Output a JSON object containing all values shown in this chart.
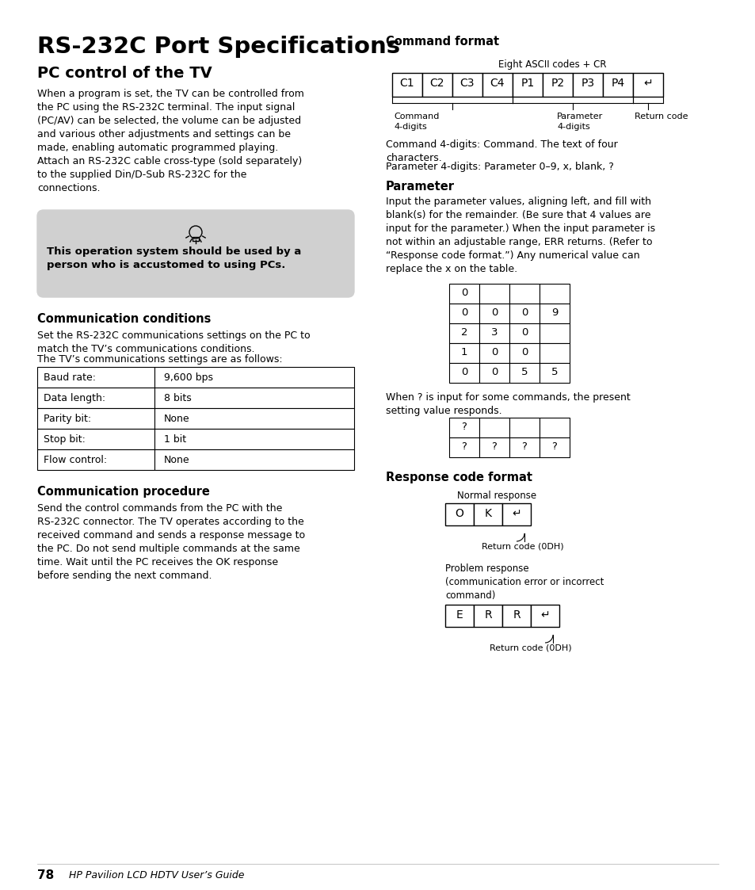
{
  "title": "RS-232C Port Specifications",
  "subtitle": "PC control of the TV",
  "bg_color": "#ffffff",
  "page_number": "78",
  "footer_text": "HP Pavilion LCD HDTV User’s Guide",
  "para1": "When a program is set, the TV can be controlled from\nthe PC using the RS-232C terminal. The input signal\n(PC/AV) can be selected, the volume can be adjusted\nand various other adjustments and settings can be\nmade, enabling automatic programmed playing.\nAttach an RS-232C cable cross-type (sold separately)\nto the supplied Din/D-Sub RS-232C for the\nconnections.",
  "tip_text": "This operation system should be used by a\nperson who is accustomed to using PCs.",
  "tip_bg": "#d0d0d0",
  "comm_cond_heading": "Communication conditions",
  "comm_cond_para": "Set the RS-232C communications settings on the PC to\nmatch the TV’s communications conditions.",
  "comm_cond_para2": "The TV’s communications settings are as follows:",
  "table_rows": [
    [
      "Baud rate:",
      "9,600 bps"
    ],
    [
      "Data length:",
      "8 bits"
    ],
    [
      "Parity bit:",
      "None"
    ],
    [
      "Stop bit:",
      "1 bit"
    ],
    [
      "Flow control:",
      "None"
    ]
  ],
  "comm_proc_heading": "Communication procedure",
  "comm_proc_para": "Send the control commands from the PC with the\nRS-232C connector. The TV operates according to the\nreceived command and sends a response message to\nthe PC. Do not send multiple commands at the same\ntime. Wait until the PC receives the OK response\nbefore sending the next command.",
  "cmd_format_heading": "Command format",
  "cmd_label_above": "Eight ASCII codes + CR",
  "cmd_boxes": [
    "C1",
    "C2",
    "C3",
    "C4",
    "P1",
    "P2",
    "P3",
    "P4",
    "↵"
  ],
  "cmd_label1": "Command\n4-digits",
  "cmd_label2": "Parameter\n4-digits",
  "cmd_label3": "Return code",
  "cmd_desc1": "Command 4-digits: Command. The text of four\ncharacters.",
  "cmd_desc2": "Parameter 4-digits: Parameter 0–9, x, blank, ?",
  "param_heading": "Parameter",
  "param_para": "Input the parameter values, aligning left, and fill with\nblank(s) for the remainder. (Be sure that 4 values are\ninput for the parameter.) When the input parameter is\nnot within an adjustable range, ERR returns. (Refer to\n“Response code format.”) Any numerical value can\nreplace the x on the table.",
  "param_table": [
    [
      "0",
      "",
      "",
      ""
    ],
    [
      "0",
      "0",
      "0",
      "9"
    ],
    [
      "2",
      "3",
      "0",
      ""
    ],
    [
      "1",
      "0",
      "0",
      ""
    ],
    [
      "0",
      "0",
      "5",
      "5"
    ]
  ],
  "question_para": "When ? is input for some commands, the present\nsetting value responds.",
  "question_table": [
    [
      "?",
      "",
      "",
      ""
    ],
    [
      "?",
      "?",
      "?",
      "?"
    ]
  ],
  "resp_heading": "Response code format",
  "normal_resp_label": "Normal response",
  "normal_resp_boxes": [
    "O",
    "K",
    "↵"
  ],
  "normal_resp_note": "Return code (0DH)",
  "problem_resp_label": "Problem response\n(communication error or incorrect\ncommand)",
  "problem_resp_boxes": [
    "E",
    "R",
    "R",
    "↵"
  ],
  "problem_resp_note": "Return code (0DH)"
}
